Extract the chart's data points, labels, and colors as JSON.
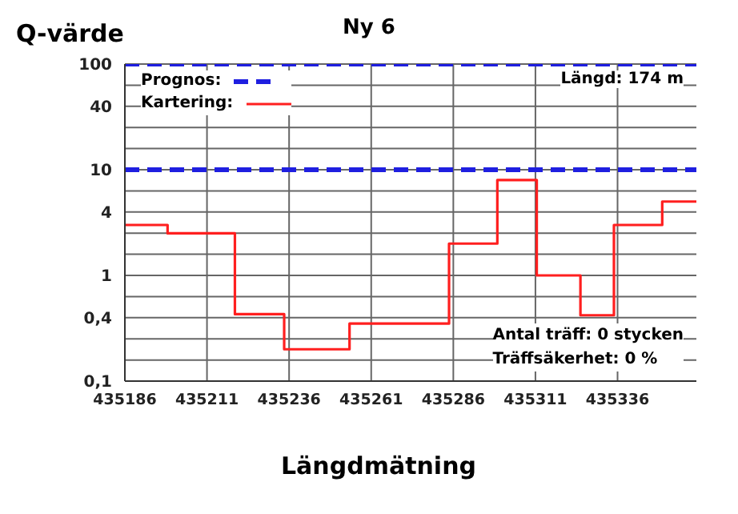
{
  "chart_data": {
    "type": "step",
    "title": "Ny 6",
    "ylabel": "Q-värde",
    "xlabel": "Längdmätning",
    "annotations": [
      "Längd: 174 m",
      "Antal träff: 0 stycken",
      "Träffsäkerhet: 0 %"
    ],
    "log": "y",
    "grid": true,
    "legend": "top left",
    "xlim": [
      435186,
      435360
    ],
    "xticks": [
      435186,
      435211,
      435236,
      435261,
      435286,
      435311,
      435336
    ],
    "ylim": [
      0.1,
      100
    ],
    "yticks": [
      {
        "value": 0.1,
        "label": "0,1"
      },
      {
        "value": 0.158,
        "label": null
      },
      {
        "value": 0.251,
        "label": null
      },
      {
        "value": 0.398,
        "label": "0,4"
      },
      {
        "value": 0.631,
        "label": null
      },
      1,
      {
        "value": 1.585,
        "label": null
      },
      {
        "value": 2.512,
        "label": null
      },
      {
        "value": 3.981,
        "label": "4"
      },
      {
        "value": 6.31,
        "label": null
      },
      10,
      {
        "value": 15.85,
        "label": null
      },
      {
        "value": 25.12,
        "label": null
      },
      {
        "value": 39.81,
        "label": "40"
      },
      {
        "value": 63.1,
        "label": null
      },
      100
    ],
    "series": [
      {
        "name": "Prognos:",
        "line_style": "dashed",
        "color": "#1f1fe0",
        "x": [
          435186,
          435360
        ],
        "values": [
          10,
          10
        ]
      },
      {
        "line_style": "dashed",
        "color": "#1f1fe0",
        "x": [
          435186,
          435360
        ],
        "values": [
          100,
          100
        ]
      },
      {
        "name": "Kartering:",
        "line_style": "solid",
        "color": "#ff1f1f",
        "x": [
          435186,
          435199,
          435219.5,
          435234.5,
          435254.4,
          435284.7,
          435299.4,
          435311.4,
          435324.7,
          435334.9,
          435349.6,
          435360
        ],
        "values": [
          3,
          2.5,
          0.43,
          0.2,
          0.35,
          2,
          8,
          1,
          0.42,
          3,
          5,
          5
        ]
      }
    ]
  }
}
